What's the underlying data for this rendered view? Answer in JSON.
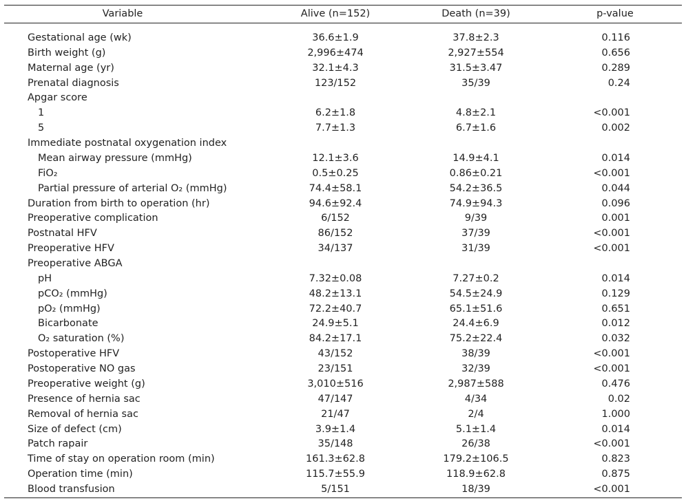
{
  "table": {
    "header": [
      "Variable",
      "Alive (n=152)",
      "Death (n=39)",
      "p-value"
    ],
    "rows": [
      {
        "label": "Gestational age (wk)",
        "alive": "36.6±1.9",
        "death": "37.8±2.3",
        "p": "0.116"
      },
      {
        "label": "Birth weight (g)",
        "alive": "2,996±474",
        "death": "2,927±554",
        "p": "0.656"
      },
      {
        "label": "Maternal age (yr)",
        "alive": "32.1±4.3",
        "death": "31.5±3.47",
        "p": "0.289"
      },
      {
        "label": "Prenatal diagnosis",
        "alive": "123/152",
        "death": "35/39",
        "p": "0.24"
      },
      {
        "label": "Apgar score",
        "items": [
          {
            "label": "1",
            "alive": "6.2±1.8",
            "death": "4.8±2.1",
            "p": "<0.001"
          },
          {
            "label": "5",
            "alive": "7.7±1.3",
            "death": "6.7±1.6",
            "p": "0.002"
          }
        ]
      },
      {
        "label": "Immediate postnatal oxygenation index",
        "items": [
          {
            "label": "Mean airway pressure (mmHg)",
            "alive": "12.1±3.6",
            "death": "14.9±4.1",
            "p": "0.014"
          },
          {
            "label": "FiO₂",
            "alive": "0.5±0.25",
            "death": "0.86±0.21",
            "p": "<0.001"
          },
          {
            "label": "Partial pressure of arterial O₂ (mmHg)",
            "alive": "74.4±58.1",
            "death": "54.2±36.5",
            "p": "0.044"
          }
        ]
      },
      {
        "label": "Duration from birth to operation (hr)",
        "alive": "94.6±92.4",
        "death": "74.9±94.3",
        "p": "0.096"
      },
      {
        "label": "Preoperative complication",
        "alive": "6/152",
        "death": "9/39",
        "p": "0.001"
      },
      {
        "label": "Postnatal HFV",
        "alive": "86/152",
        "death": "37/39",
        "p": "<0.001"
      },
      {
        "label": "Preoperative HFV",
        "alive": "34/137",
        "death": "31/39",
        "p": "<0.001"
      },
      {
        "label": "Preoperative ABGA",
        "items": [
          {
            "label": "pH",
            "alive": "7.32±0.08",
            "death": "7.27±0.2",
            "p": "0.014"
          },
          {
            "label": "pCO₂ (mmHg)",
            "alive": "48.2±13.1",
            "death": "54.5±24.9",
            "p": "0.129"
          },
          {
            "label": "pO₂ (mmHg)",
            "alive": "72.2±40.7",
            "death": "65.1±51.6",
            "p": "0.651"
          },
          {
            "label": "Bicarbonate",
            "alive": "24.9±5.1",
            "death": "24.4±6.9",
            "p": "0.012"
          },
          {
            "label": "O₂ saturation (%)",
            "alive": "84.2±17.1",
            "death": "75.2±22.4",
            "p": "0.032"
          }
        ]
      },
      {
        "label": "Postoperative HFV",
        "alive": "43/152",
        "death": "38/39",
        "p": "<0.001"
      },
      {
        "label": "Postoperative NO gas",
        "alive": "23/151",
        "death": "32/39",
        "p": "<0.001"
      },
      {
        "label": "Preoperative weight (g)",
        "alive": "3,010±516",
        "death": "2,987±588",
        "p": "0.476"
      },
      {
        "label": "Presence of hernia sac",
        "alive": "47/147",
        "death": "4/34",
        "p": "0.02"
      },
      {
        "label": "Removal of hernia sac",
        "alive": "21/47",
        "death": "2/4",
        "p": "1.000"
      },
      {
        "label": "Size of defect (cm)",
        "alive": "3.9±1.4",
        "death": "5.1±1.4",
        "p": "0.014"
      },
      {
        "label": "Patch rapair",
        "alive": "35/148",
        "death": "26/38",
        "p": "<0.001"
      },
      {
        "label": "Time of stay on operation room (min)",
        "alive": "161.3±62.8",
        "death": "179.2±106.5",
        "p": "0.823"
      },
      {
        "label": "Operation time (min)",
        "alive": "115.7±55.9",
        "death": "118.9±62.8",
        "p": "0.875"
      },
      {
        "label": "Blood transfusion",
        "alive": "5/151",
        "death": "18/39",
        "p": "<0.001"
      }
    ]
  }
}
